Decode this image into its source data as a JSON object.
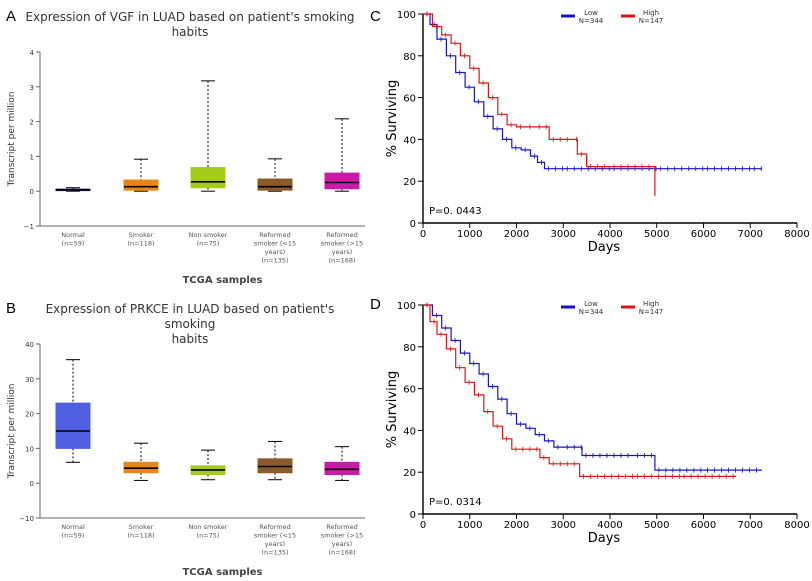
{
  "panel_labels": {
    "a": "A",
    "b": "B",
    "c": "C",
    "d": "D"
  },
  "colors": {
    "low": "#1414c8",
    "high": "#e01414",
    "axis": "#666666"
  },
  "chart_data": [
    {
      "type": "boxplot",
      "title": "Expression of VGF in LUAD based on patient's smoking habits",
      "title_lines": [
        "Expression of VGF in LUAD based on patient's smoking",
        "habits"
      ],
      "ylabel": "Transcript per million",
      "xlabel": "TCGA samples",
      "ylim": [
        -1,
        4
      ],
      "yticks": [
        -1,
        0,
        1,
        2,
        3,
        4
      ],
      "groups": [
        {
          "label": [
            "Normal",
            "(n=59)"
          ],
          "color": "#1a237e",
          "min": 0.0,
          "q1": 0.02,
          "median": 0.04,
          "q3": 0.06,
          "max": 0.1
        },
        {
          "label": [
            "Smoker",
            "(n=118)"
          ],
          "color": "#e8861a",
          "min": 0.0,
          "q1": 0.03,
          "median": 0.13,
          "q3": 0.32,
          "max": 0.92
        },
        {
          "label": [
            "Non smoker",
            "(n=75)"
          ],
          "color": "#a6cc1a",
          "min": 0.0,
          "q1": 0.1,
          "median": 0.27,
          "q3": 0.68,
          "max": 3.17
        },
        {
          "label": [
            "Reformed",
            "smoker (<15",
            "years)",
            "(n=135)"
          ],
          "color": "#8b5a2b",
          "min": 0.0,
          "q1": 0.03,
          "median": 0.13,
          "q3": 0.35,
          "max": 0.93
        },
        {
          "label": [
            "Reformed",
            "smoker (>15",
            "years)",
            "(n=168)"
          ],
          "color": "#cc1aa8",
          "min": 0.0,
          "q1": 0.07,
          "median": 0.25,
          "q3": 0.52,
          "max": 2.08
        }
      ]
    },
    {
      "type": "boxplot",
      "title": "Expression of PRKCE in LUAD based on patient's smoking habits",
      "title_lines": [
        "Expression of PRKCE in LUAD based on patient's smoking",
        "habits"
      ],
      "ylabel": "Transcript per million",
      "xlabel": "TCGA samples",
      "ylim": [
        -10,
        40
      ],
      "yticks": [
        -10,
        0,
        10,
        20,
        30,
        40
      ],
      "groups": [
        {
          "label": [
            "Normal",
            "(n=59)"
          ],
          "color": "#4f5fe0",
          "min": 6,
          "q1": 10,
          "median": 15,
          "q3": 23,
          "max": 35.5
        },
        {
          "label": [
            "Smoker",
            "(n=118)"
          ],
          "color": "#e8861a",
          "min": 0.8,
          "q1": 3,
          "median": 4.3,
          "q3": 6,
          "max": 11.5
        },
        {
          "label": [
            "Non smoker",
            "(n=75)"
          ],
          "color": "#a6cc1a",
          "min": 1,
          "q1": 2.5,
          "median": 3.8,
          "q3": 5,
          "max": 9.5
        },
        {
          "label": [
            "Reformed",
            "smoker (<15",
            "years)",
            "(n=135)"
          ],
          "color": "#8b5a2b",
          "min": 1,
          "q1": 3,
          "median": 4.8,
          "q3": 7,
          "max": 12
        },
        {
          "label": [
            "Reformed",
            "smoker (>15",
            "years)",
            "(n=168)"
          ],
          "color": "#cc1aa8",
          "min": 0.8,
          "q1": 2.5,
          "median": 4,
          "q3": 6,
          "max": 10.5
        }
      ]
    },
    {
      "type": "line",
      "subtype": "kaplan-meier",
      "xlabel": "Days",
      "ylabel": "% Surviving",
      "xlim": [
        0,
        8000
      ],
      "ylim": [
        0,
        100
      ],
      "xticks": [
        0,
        1000,
        2000,
        3000,
        4000,
        5000,
        6000,
        7000,
        8000
      ],
      "yticks": [
        0,
        20,
        40,
        60,
        80,
        100
      ],
      "pvalue": "P=0. 0443",
      "series": [
        {
          "name": "Low",
          "n": "N=344",
          "color": "#1414c8",
          "x": [
            0,
            150,
            300,
            500,
            700,
            900,
            1100,
            1300,
            1500,
            1700,
            1900,
            2100,
            2300,
            2450,
            2600,
            3000,
            4000,
            5000,
            6000,
            7000,
            7250
          ],
          "y": [
            100,
            95,
            88,
            80,
            72,
            65,
            58,
            51,
            45,
            40,
            36,
            35,
            32,
            29,
            26,
            26,
            26,
            26,
            26,
            26,
            26
          ]
        },
        {
          "name": "High",
          "n": "N=147",
          "color": "#e01414",
          "x": [
            0,
            200,
            400,
            600,
            800,
            1000,
            1200,
            1400,
            1600,
            1800,
            2000,
            2200,
            2400,
            2650,
            2700,
            3200,
            3300,
            3500,
            4000,
            4950,
            4960
          ],
          "y": [
            100,
            94,
            90,
            86,
            80,
            74,
            67,
            60,
            52,
            47,
            46,
            46,
            46,
            46,
            40,
            40,
            33,
            27,
            27,
            27,
            13
          ]
        }
      ]
    },
    {
      "type": "line",
      "subtype": "kaplan-meier",
      "xlabel": "Days",
      "ylabel": "% Surviving",
      "xlim": [
        0,
        8000
      ],
      "ylim": [
        0,
        100
      ],
      "xticks": [
        0,
        1000,
        2000,
        3000,
        4000,
        5000,
        6000,
        7000,
        8000
      ],
      "yticks": [
        0,
        20,
        40,
        60,
        80,
        100
      ],
      "pvalue": "P=0. 0314",
      "series": [
        {
          "name": "Low",
          "n": "N=344",
          "color": "#1414c8",
          "x": [
            0,
            200,
            400,
            600,
            800,
            1000,
            1200,
            1400,
            1600,
            1800,
            2000,
            2200,
            2400,
            2600,
            2800,
            3000,
            3400,
            4000,
            4500,
            4950,
            4960,
            6000,
            7250
          ],
          "y": [
            100,
            95,
            89,
            83,
            77,
            72,
            67,
            61,
            55,
            48,
            43,
            41,
            38,
            35,
            32,
            32,
            28,
            28,
            28,
            28,
            21,
            21,
            21
          ]
        },
        {
          "name": "High",
          "n": "N=147",
          "color": "#e01414",
          "x": [
            0,
            150,
            300,
            500,
            700,
            900,
            1100,
            1300,
            1500,
            1700,
            1900,
            2200,
            2500,
            2700,
            3300,
            3350,
            4500,
            5500,
            6700
          ],
          "y": [
            100,
            92,
            86,
            79,
            70,
            63,
            57,
            49,
            42,
            36,
            31,
            31,
            27,
            24,
            24,
            18,
            18,
            18,
            18
          ]
        }
      ]
    }
  ]
}
